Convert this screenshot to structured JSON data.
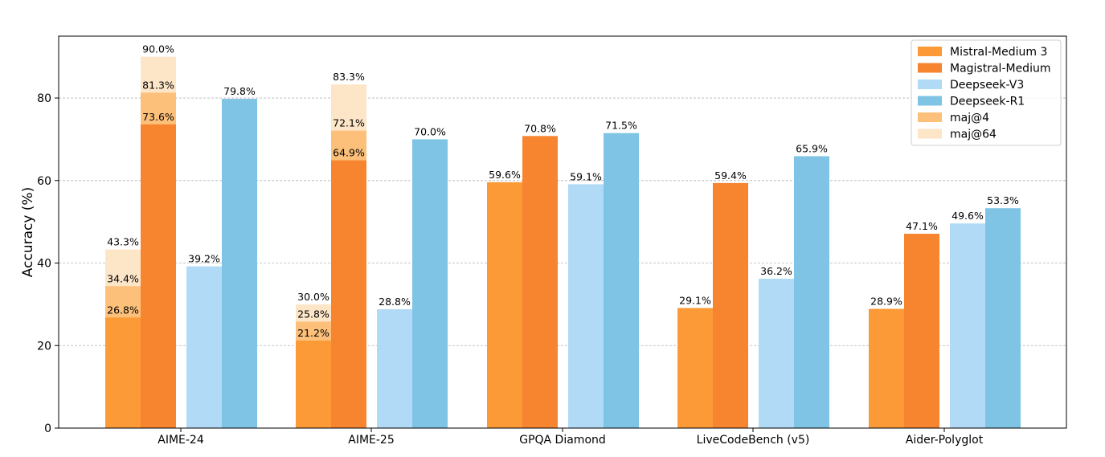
{
  "chart_data": {
    "type": "bar",
    "ylabel": "Accuracy (%)",
    "ylim": [
      0,
      95
    ],
    "yticks": [
      0,
      20,
      40,
      60,
      80
    ],
    "grid": "y-dashed",
    "legend_position": "top-right",
    "categories": [
      "AIME-24",
      "AIME-25",
      "GPQA Diamond",
      "LiveCodeBench (v5)",
      "Aider-Polyglot"
    ],
    "series": [
      {
        "name": "Mistral-Medium 3",
        "color": "#fb9a36",
        "values": [
          26.8,
          21.2,
          59.6,
          29.1,
          28.9
        ],
        "labels": [
          "26.8%",
          "21.2%",
          "59.6%",
          "29.1%",
          "28.9%"
        ]
      },
      {
        "name": "Magistral-Medium",
        "color": "#f7842f",
        "values": [
          73.6,
          64.9,
          70.8,
          59.4,
          47.1
        ],
        "labels": [
          "73.6%",
          "64.9%",
          "70.8%",
          "59.4%",
          "47.1%"
        ]
      },
      {
        "name": "Deepseek-V3",
        "color": "#b0daf6",
        "values": [
          39.2,
          28.8,
          59.1,
          36.2,
          49.6
        ],
        "labels": [
          "39.2%",
          "28.8%",
          "59.1%",
          "36.2%",
          "49.6%"
        ]
      },
      {
        "name": "Deepseek-R1",
        "color": "#7fc4e4",
        "values": [
          79.8,
          70.0,
          71.5,
          65.9,
          53.3
        ],
        "labels": [
          "79.8%",
          "70.0%",
          "71.5%",
          "65.9%",
          "53.3%"
        ]
      }
    ],
    "overlays": [
      {
        "name": "maj@4",
        "color": "#fcc07a",
        "values": [
          {
            "series": 0,
            "category": 0,
            "value": 34.4,
            "label": "34.4%"
          },
          {
            "series": 1,
            "category": 0,
            "value": 81.3,
            "label": "81.3%"
          },
          {
            "series": 0,
            "category": 1,
            "value": 25.8,
            "label": "25.8%"
          },
          {
            "series": 1,
            "category": 1,
            "value": 72.1,
            "label": "72.1%"
          }
        ]
      },
      {
        "name": "maj@64",
        "color": "#fde5c8",
        "values": [
          {
            "series": 0,
            "category": 0,
            "value": 43.3,
            "label": "43.3%"
          },
          {
            "series": 1,
            "category": 0,
            "value": 90.0,
            "label": "90.0%"
          },
          {
            "series": 0,
            "category": 1,
            "value": 30.0,
            "label": "30.0%"
          },
          {
            "series": 1,
            "category": 1,
            "value": 83.3,
            "label": "83.3%"
          }
        ]
      }
    ]
  }
}
